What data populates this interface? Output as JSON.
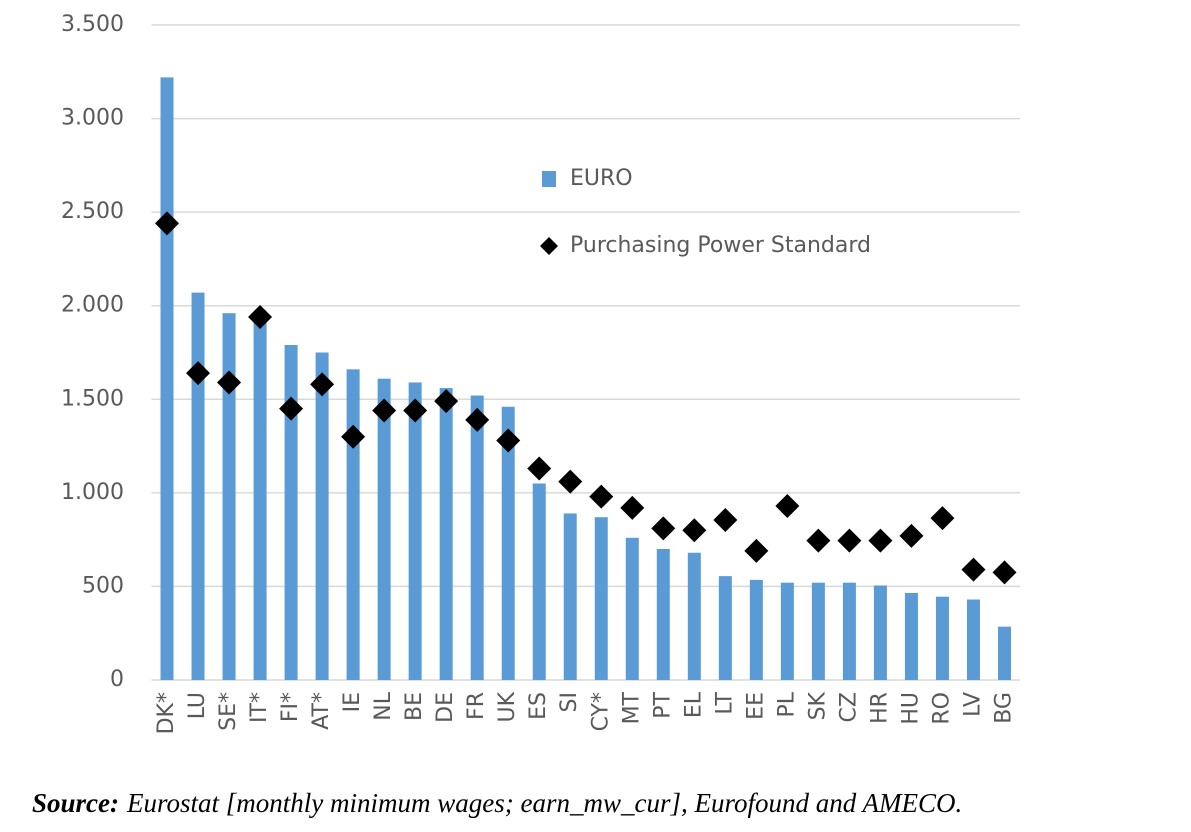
{
  "chart_data": {
    "type": "bar",
    "categories": [
      "DK*",
      "LU",
      "SE*",
      "IT*",
      "FI*",
      "AT*",
      "IE",
      "NL",
      "BE",
      "DE",
      "FR",
      "UK",
      "ES",
      "SI",
      "CY*",
      "MT",
      "PT",
      "EL",
      "LT",
      "EE",
      "PL",
      "SK",
      "CZ",
      "HR",
      "HU",
      "RO",
      "LV",
      "BG"
    ],
    "series": [
      {
        "name": "EURO",
        "type": "bar",
        "color": "#5b9bd5",
        "values": [
          3220,
          2070,
          1960,
          1950,
          1790,
          1750,
          1660,
          1610,
          1590,
          1560,
          1520,
          1460,
          1050,
          890,
          870,
          760,
          700,
          680,
          555,
          535,
          520,
          520,
          520,
          505,
          465,
          445,
          430,
          285
        ]
      },
      {
        "name": "Purchasing Power Standard",
        "type": "marker",
        "color": "#000000",
        "values": [
          2440,
          1640,
          1590,
          1940,
          1450,
          1580,
          1300,
          1440,
          1440,
          1490,
          1390,
          1280,
          1130,
          1060,
          980,
          920,
          810,
          800,
          855,
          690,
          930,
          745,
          745,
          745,
          770,
          865,
          590,
          575
        ]
      }
    ],
    "ylim": [
      0,
      3500
    ],
    "yticks": [
      0,
      500,
      {
        "value": 1000,
        "label": "1.000"
      },
      {
        "value": 1500,
        "label": "1.500"
      },
      {
        "value": 2000,
        "label": "2.000"
      },
      {
        "value": 2500,
        "label": "2.500"
      },
      {
        "value": 3000,
        "label": "3.000"
      },
      {
        "value": 3500,
        "label": "3.500"
      }
    ],
    "grid": true,
    "legend": "upper right",
    "source_label": "Source:",
    "source": "Eurostat [monthly minimum wages; earn_mw_cur], Eurofound and AMECO."
  }
}
